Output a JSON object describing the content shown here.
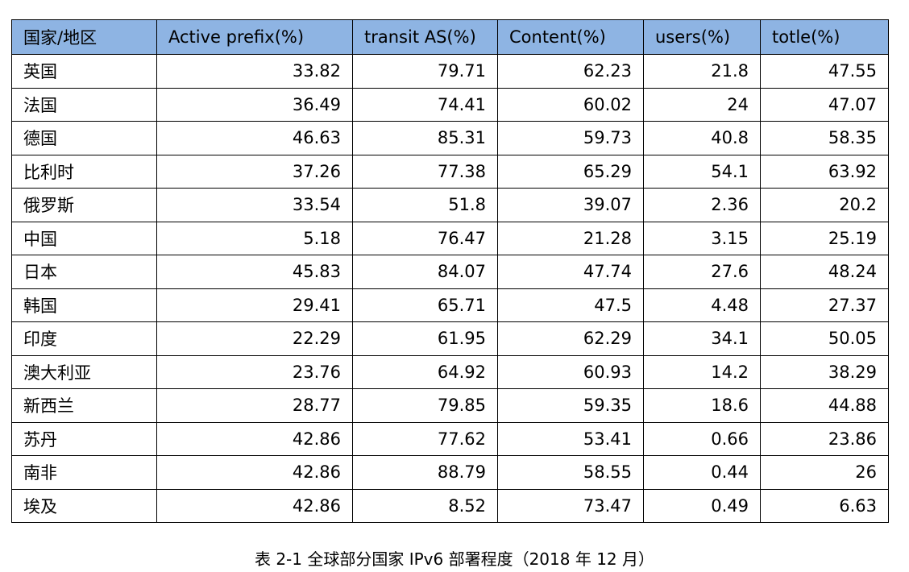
{
  "table": {
    "headers": [
      "国家/地区",
      "Active prefix(%)",
      "transit AS(%)",
      "Content(%)",
      "users(%)",
      "totle(%)"
    ],
    "header_color": "#8eb4e3",
    "rows": [
      [
        "英国",
        "33.82",
        "79.71",
        "62.23",
        "21.8",
        "47.55"
      ],
      [
        "法国",
        "36.49",
        "74.41",
        "60.02",
        "24",
        "47.07"
      ],
      [
        "德国",
        "46.63",
        "85.31",
        "59.73",
        "40.8",
        "58.35"
      ],
      [
        "比利时",
        "37.26",
        "77.38",
        "65.29",
        "54.1",
        "63.92"
      ],
      [
        "俄罗斯",
        "33.54",
        "51.8",
        "39.07",
        "2.36",
        "20.2"
      ],
      [
        "中国",
        "5.18",
        "76.47",
        "21.28",
        "3.15",
        "25.19"
      ],
      [
        "日本",
        "45.83",
        "84.07",
        "47.74",
        "27.6",
        "48.24"
      ],
      [
        "韩国",
        "29.41",
        "65.71",
        "47.5",
        "4.48",
        "27.37"
      ],
      [
        "印度",
        "22.29",
        "61.95",
        "62.29",
        "34.1",
        "50.05"
      ],
      [
        "澳大利亚",
        "23.76",
        "64.92",
        "60.93",
        "14.2",
        "38.29"
      ],
      [
        "新西兰",
        "28.77",
        "79.85",
        "59.35",
        "18.6",
        "44.88"
      ],
      [
        "苏丹",
        "42.86",
        "77.62",
        "53.41",
        "0.66",
        "23.86"
      ],
      [
        "南非",
        "42.86",
        "88.79",
        "58.55",
        "0.44",
        "26"
      ],
      [
        "埃及",
        "42.86",
        "8.52",
        "73.47",
        "0.49",
        "6.63"
      ]
    ]
  },
  "caption": "表 2-1 全球部分国家 IPv6 部署程度（2018 年 12 月）"
}
